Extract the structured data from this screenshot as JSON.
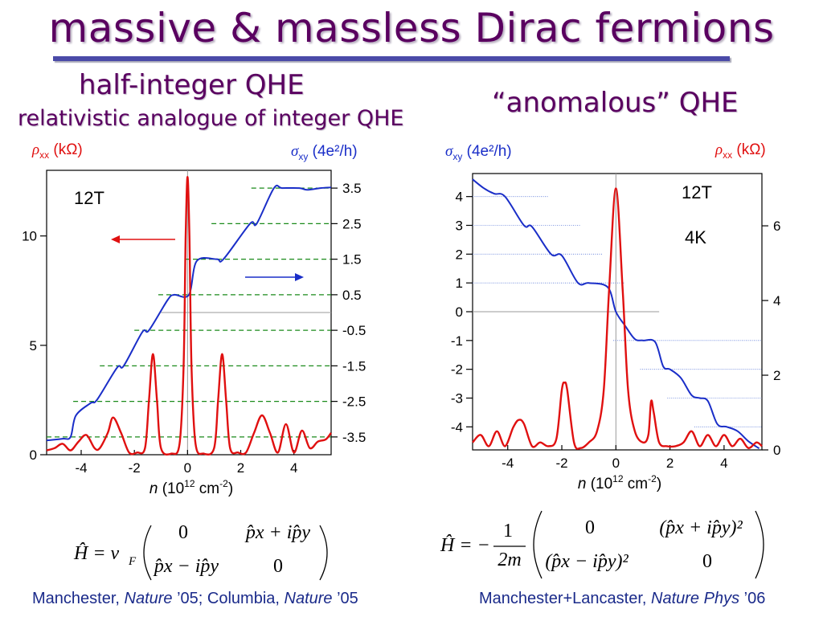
{
  "title": "massive & massless Dirac fermions",
  "left_heading": "half-integer QHE",
  "left_subheading": "relativistic analogue of integer QHE",
  "right_heading": "“anomalous” QHE",
  "credit_left": {
    "a": "Manchester, ",
    "b": "Nature",
    "c": " ’05; Columbia, ",
    "d": "Nature",
    "e": " ’05"
  },
  "credit_right": {
    "a": "Manchester+Lancaster, ",
    "b": "Nature Phys",
    "c": " ’06"
  },
  "colors": {
    "title": "#5a0060",
    "sigma": "#1a2ec8",
    "rho": "#e01010",
    "plateau_left": "#1a8a1a",
    "plateau_right": "#5a78d8",
    "credit": "#1a2a8a"
  },
  "chart_data": [
    {
      "type": "line",
      "panel": "left",
      "annotation": "12T",
      "xlabel": "n (10^12 cm^-2)",
      "xlim": [
        -5.3,
        5.4
      ],
      "xticks": [
        "-4",
        "-2",
        "0",
        "2",
        "4"
      ],
      "left_axis": {
        "label": "ρxx (kΩ)",
        "lim": [
          0,
          13
        ],
        "ticks": [
          "0",
          "5",
          "10"
        ]
      },
      "right_axis": {
        "label": "σxy (4e²/h)",
        "lim": [
          -4,
          4
        ],
        "ticks": [
          "3.5",
          "2.5",
          "1.5",
          "0.5",
          "-0.5",
          "-1.5",
          "-2.5",
          "-3.5"
        ]
      },
      "series": [
        {
          "name": "σxy",
          "axis": "right",
          "x": [
            -5.3,
            -4.7,
            -4.4,
            -4.2,
            -3.65,
            -3.4,
            -2.65,
            -2.4,
            -1.7,
            -1.45,
            -0.75,
            -0.5,
            0.05,
            0.35,
            1.1,
            1.35,
            2.35,
            2.6,
            3.25,
            3.55,
            4.2,
            4.5,
            5.0,
            5.4
          ],
          "y": [
            -3.6,
            -3.55,
            -3.5,
            -2.9,
            -2.55,
            -2.45,
            -1.55,
            -1.5,
            -0.55,
            -0.5,
            0.35,
            0.5,
            0.5,
            1.45,
            1.5,
            1.5,
            2.5,
            2.5,
            3.5,
            3.5,
            3.5,
            3.45,
            3.5,
            3.52
          ]
        },
        {
          "name": "ρxx",
          "axis": "left",
          "x": [
            -5.3,
            -5.0,
            -4.7,
            -4.4,
            -4.1,
            -3.8,
            -3.5,
            -3.3,
            -3.0,
            -2.8,
            -2.5,
            -2.2,
            -1.9,
            -1.6,
            -1.45,
            -1.3,
            -1.15,
            -1.0,
            -0.6,
            -0.3,
            -0.15,
            -0.07,
            0,
            0.07,
            0.15,
            0.3,
            0.6,
            1.0,
            1.15,
            1.3,
            1.45,
            1.6,
            1.9,
            2.2,
            2.5,
            2.8,
            3.1,
            3.4,
            3.7,
            4.0,
            4.3,
            4.6,
            4.9,
            5.2,
            5.4
          ],
          "y": [
            0.2,
            0.3,
            0.5,
            0.2,
            0.6,
            0.9,
            0.3,
            0.3,
            1.0,
            1.7,
            1.0,
            0.1,
            0.1,
            0.3,
            2.5,
            4.6,
            2.5,
            0.3,
            0.05,
            0.5,
            4.0,
            10.0,
            12.7,
            10.0,
            4.0,
            0.5,
            0.05,
            0.3,
            2.5,
            4.6,
            2.5,
            0.3,
            0.1,
            0.1,
            1.0,
            1.8,
            1.0,
            0.1,
            1.4,
            0.1,
            1.1,
            0.3,
            0.6,
            0.7,
            1.0
          ]
        }
      ],
      "plateaus": [
        -3.5,
        -2.5,
        -1.5,
        -0.5,
        0.5,
        1.5,
        2.5,
        3.5
      ]
    },
    {
      "type": "line",
      "panel": "right",
      "annotations": [
        "12T",
        "4K"
      ],
      "xlabel": "n (10^12 cm^-2)",
      "xlim": [
        -5.3,
        5.4
      ],
      "xticks": [
        "-4",
        "-2",
        "0",
        "2",
        "4"
      ],
      "left_axis": {
        "label": "σxy (4e²/h)",
        "lim": [
          -4.8,
          4.8
        ],
        "ticks": [
          "4",
          "3",
          "2",
          "1",
          "0",
          "-1",
          "-2",
          "-3",
          "-4"
        ]
      },
      "right_axis": {
        "label": "ρxx (kΩ)",
        "lim": [
          0,
          7.4
        ],
        "ticks": [
          "0",
          "2",
          "4",
          "6"
        ]
      },
      "series": [
        {
          "name": "σxy",
          "axis": "left",
          "x": [
            -5.3,
            -4.9,
            -4.5,
            -4.1,
            -3.4,
            -3.1,
            -2.4,
            -2.0,
            -1.4,
            -1.0,
            -0.3,
            0.0,
            0.35,
            0.7,
            1.0,
            1.45,
            1.75,
            2.0,
            2.4,
            2.8,
            3.1,
            3.4,
            3.75,
            4.1,
            4.5,
            4.9,
            5.3
          ],
          "y": [
            4.6,
            4.3,
            4.1,
            4.0,
            3.0,
            2.95,
            2.0,
            1.95,
            1.0,
            1.0,
            0.85,
            0.0,
            -0.5,
            -0.95,
            -1.0,
            -1.05,
            -1.9,
            -2.0,
            -2.3,
            -2.9,
            -3.0,
            -3.1,
            -3.9,
            -4.0,
            -4.15,
            -4.5,
            -4.75
          ]
        },
        {
          "name": "ρxx",
          "axis": "right",
          "x": [
            -5.3,
            -5.0,
            -4.7,
            -4.4,
            -4.1,
            -3.8,
            -3.6,
            -3.4,
            -3.1,
            -2.8,
            -2.5,
            -2.2,
            -2.0,
            -1.9,
            -1.8,
            -1.55,
            -1.3,
            -1.0,
            -0.7,
            -0.45,
            -0.25,
            0,
            0.25,
            0.45,
            0.7,
            1.0,
            1.2,
            1.3,
            1.4,
            1.6,
            1.9,
            2.2,
            2.5,
            2.8,
            3.1,
            3.4,
            3.7,
            4.0,
            4.3,
            4.6,
            4.9,
            5.2,
            5.4
          ],
          "y": [
            0.2,
            0.4,
            0.1,
            0.5,
            0.1,
            0.6,
            0.8,
            0.7,
            0.1,
            0.2,
            0.1,
            0.3,
            1.6,
            1.8,
            1.6,
            0.2,
            0.05,
            0.2,
            0.5,
            1.6,
            4.3,
            7.0,
            4.3,
            1.6,
            0.5,
            0.2,
            0.4,
            1.3,
            1.0,
            0.2,
            0.1,
            0.1,
            0.2,
            0.5,
            0.1,
            0.4,
            0.1,
            0.4,
            0.1,
            0.3,
            0.05,
            0.2,
            0.1
          ]
        }
      ],
      "plateaus": [
        4,
        3,
        2,
        1,
        -1,
        -2,
        -3,
        -4
      ]
    }
  ],
  "formulas": {
    "left": {
      "lhs": "Ĥ = v",
      "sub": "F",
      "m11": "0",
      "m12": "p̂x + ip̂y",
      "m21": "p̂x − ip̂y",
      "m22": "0"
    },
    "right": {
      "lhs": "Ĥ = −",
      "num": "1",
      "den": "2m",
      "m11": "0",
      "m12": "(p̂x + ip̂y)²",
      "m21": "(p̂x − ip̂y)²",
      "m22": "0"
    }
  }
}
